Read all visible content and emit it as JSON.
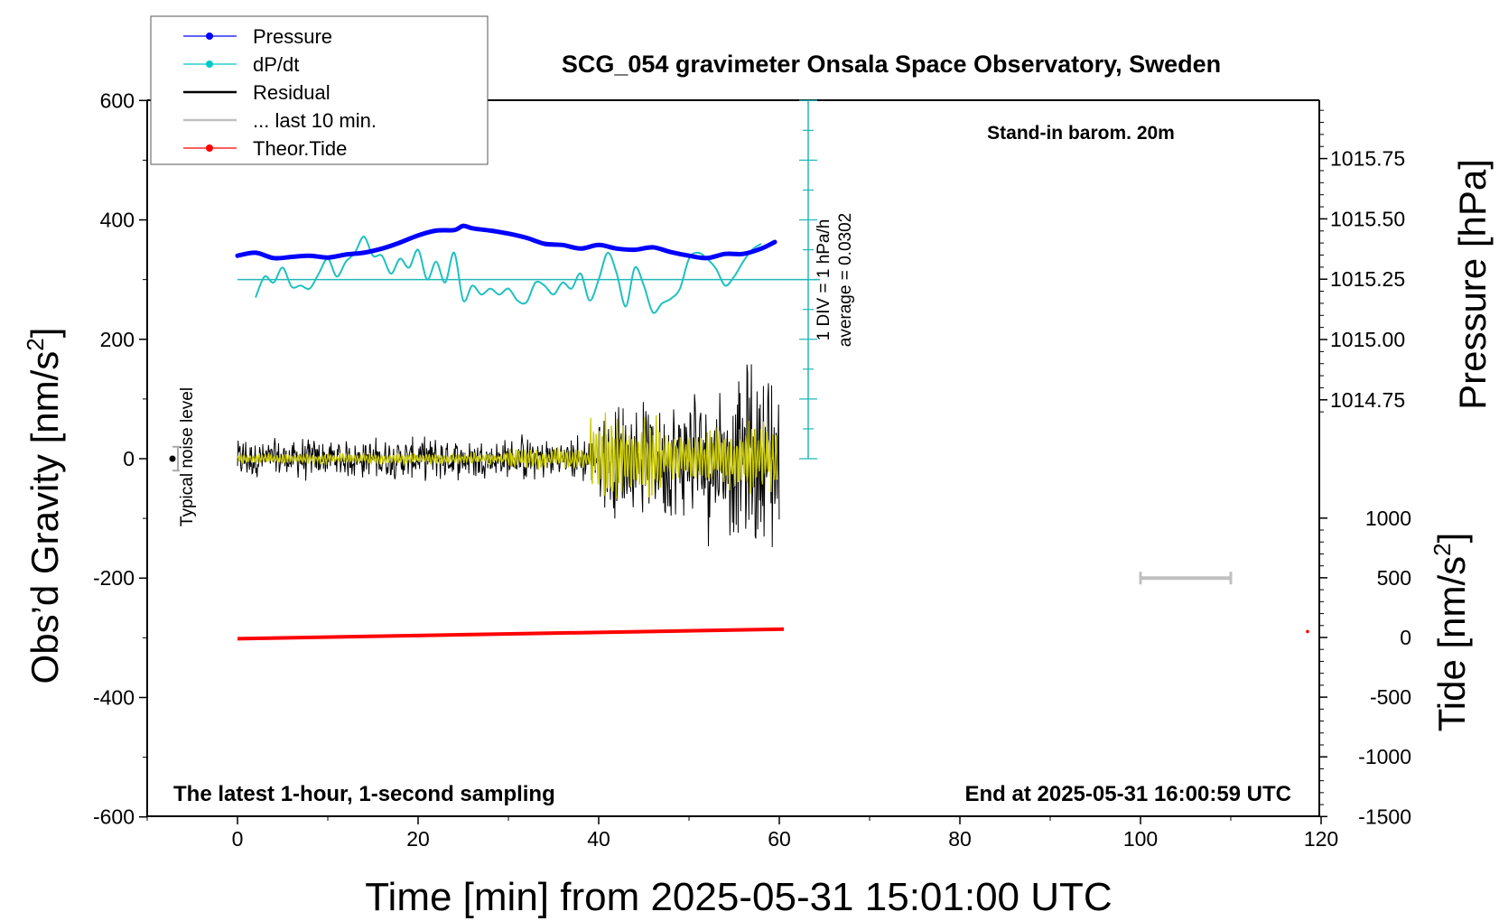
{
  "chart_data": {
    "type": "line",
    "title": "SCG_054 gravimeter Onsala Space Observatory, Sweden",
    "subtitle_left": "The latest 1-hour, 1-second sampling",
    "subtitle_right": "End at 2025-05-31 16:00:59 UTC",
    "note_top_right": "Stand-in barom. 20m",
    "xlabel": "Time [min] from 2025-05-31 15:01:00 UTC",
    "xlim": [
      -10,
      120
    ],
    "xticks": [
      0,
      20,
      40,
      60,
      80,
      100,
      120
    ],
    "y_left": {
      "label_main": "Obs’d Gravity [nm/s",
      "label_sup": "2",
      "label_end": "]",
      "lim": [
        -600,
        600
      ],
      "ticks": [
        600,
        400,
        200,
        0,
        -200,
        -400,
        -600
      ]
    },
    "y_right_pressure": {
      "label": "Pressure [hPa]",
      "ticks": [
        "1015.75",
        "1015.50",
        "1015.25",
        "1015.00",
        "1014.75"
      ],
      "tick_values": [
        1015.75,
        1015.5,
        1015.25,
        1015.0,
        1014.75
      ]
    },
    "y_right_tide": {
      "label_main": "Tide [nm/s",
      "label_sup": "2",
      "label_end": "]",
      "ticks": [
        "1000",
        "500",
        "0",
        "-500",
        "-1000",
        "-1500"
      ],
      "tick_values": [
        1000,
        500,
        0,
        -500,
        -1000,
        -1500
      ]
    },
    "dpdt_scale": {
      "line1": "1 DIV = 1 hPa/h",
      "line2": "average = 0.0302"
    },
    "noise_label": "Typical noise level",
    "legend": [
      {
        "label": "Pressure",
        "color": "#0000ff",
        "marker": true
      },
      {
        "label": "dP/dt",
        "color": "#00c8c8",
        "marker": true
      },
      {
        "label": "Residual",
        "color": "#000000",
        "marker": false
      },
      {
        "label": "... last 10 min.",
        "color": "#c0c0c0",
        "marker": false
      },
      {
        "label": "Theor.Tide",
        "color": "#ff0000",
        "marker": true
      }
    ],
    "series": [
      {
        "name": "Pressure",
        "color": "#0000ff",
        "x": [
          0,
          2,
          4,
          6,
          8,
          10,
          12,
          14,
          16,
          18,
          20,
          22,
          24,
          25,
          26,
          28,
          30,
          32,
          34,
          36,
          38,
          40,
          42,
          44,
          46,
          48,
          50,
          52,
          54,
          56,
          58,
          59.5
        ],
        "y": [
          340,
          345,
          336,
          338,
          340,
          337,
          342,
          345,
          352,
          362,
          374,
          382,
          383,
          390,
          386,
          382,
          377,
          370,
          360,
          358,
          352,
          358,
          352,
          350,
          354,
          346,
          340,
          336,
          343,
          343,
          352,
          363
        ]
      },
      {
        "name": "dP/dt",
        "color": "#00c8c8",
        "x": [
          2,
          3,
          4,
          5,
          6,
          7,
          8,
          9,
          10,
          11,
          12,
          13,
          14,
          15,
          16,
          17,
          18,
          19,
          20,
          21,
          22,
          23,
          24,
          25,
          26,
          27,
          28,
          29,
          30,
          31,
          32,
          33,
          34,
          35,
          36,
          37,
          38,
          39,
          40,
          41,
          42,
          43,
          44,
          45,
          46,
          47,
          48,
          49,
          50,
          51,
          52,
          53,
          54,
          55,
          56,
          57,
          58
        ],
        "y": [
          270,
          305,
          295,
          320,
          288,
          290,
          285,
          310,
          335,
          305,
          330,
          345,
          372,
          340,
          340,
          310,
          335,
          320,
          350,
          300,
          330,
          295,
          345,
          265,
          290,
          275,
          285,
          275,
          285,
          265,
          262,
          295,
          290,
          275,
          295,
          285,
          310,
          265,
          300,
          345,
          310,
          255,
          320,
          290,
          245,
          260,
          268,
          285,
          335,
          345,
          335,
          318,
          290,
          305,
          330,
          350,
          360
        ]
      },
      {
        "name": "Residual",
        "color": "#000000",
        "note": "1-second residual noise, envelope approx +/-40 nm/s before 40 min, up to +/-200 nm/s after"
      },
      {
        "name": "... last 10 min.",
        "color": "#c8c800",
        "note": "smoothed residual, envelope approx +/-10 before 30 min, up to +/-90 after 42 min"
      },
      {
        "name": "Theor.Tide",
        "color": "#ff0000",
        "x": [
          0,
          60.5
        ],
        "y_tide": [
          -10,
          70
        ]
      }
    ],
    "noise_bar": {
      "x": -7,
      "y": 0,
      "half_range": 20
    },
    "scale_bar": {
      "x_start": 100,
      "x_end": 110,
      "y": -200
    }
  }
}
